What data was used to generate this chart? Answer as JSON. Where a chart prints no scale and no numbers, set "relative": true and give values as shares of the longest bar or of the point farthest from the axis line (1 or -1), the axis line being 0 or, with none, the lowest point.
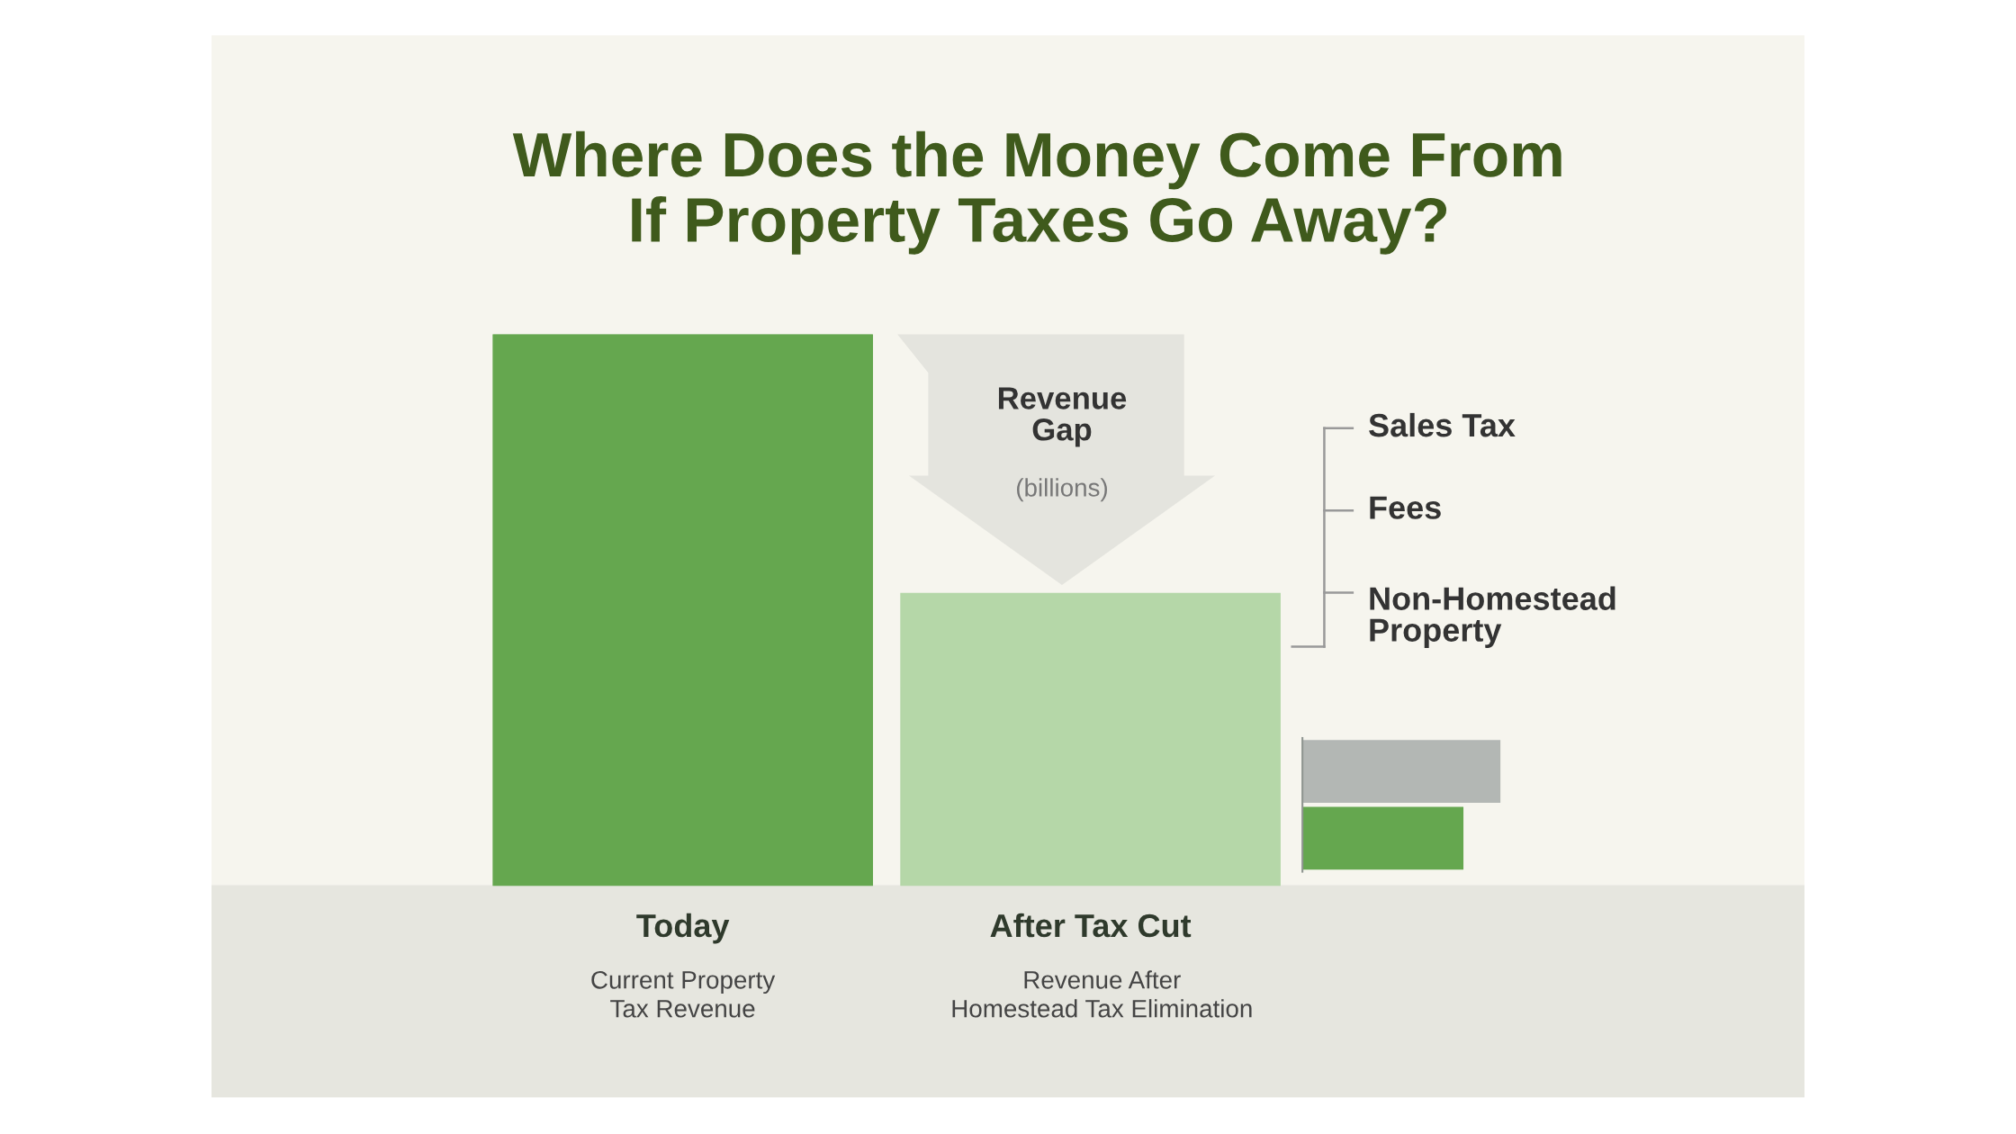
{
  "chart_data": [
    {
      "type": "bar",
      "title": "Where Does the Money Come From\nIf Property Taxes Go Away?",
      "relative": true,
      "categories": [
        "Today",
        "After Tax Cut"
      ],
      "values": [
        1,
        0.53
      ],
      "colors": [
        "#65a74f",
        "#b5d7a8"
      ],
      "annotations": [
        "Current Property\nTax Revenue",
        "Revenue After\nHomestead Tax Elimination",
        "Revenue\nGap",
        "(billions)",
        "Sales Tax",
        "Fees",
        "Non-Homestead\nProperty"
      ]
    },
    {
      "type": "bar",
      "orientation": "horizontal",
      "relative": true,
      "categories": [
        null,
        null
      ],
      "values": [
        1,
        0.81
      ],
      "colors": [
        "#b3b7b4",
        "#65a74f"
      ]
    }
  ]
}
